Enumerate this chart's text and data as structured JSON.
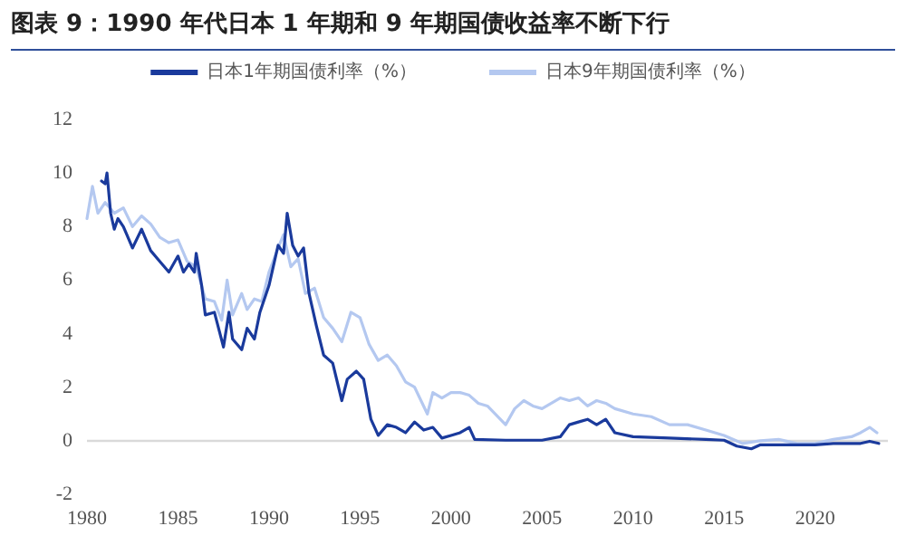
{
  "chart_data": {
    "type": "line",
    "title": "图表 9：1990 年代日本 1 年期和 9 年期国债收益率不断下行",
    "xlim": [
      1980,
      2024
    ],
    "xticks": [
      1980,
      1985,
      1990,
      1995,
      2000,
      2005,
      2010,
      2015,
      2020
    ],
    "ylim": [
      -2,
      12
    ],
    "yticks": [
      -2,
      0,
      2,
      4,
      6,
      8,
      10,
      12
    ],
    "grid": false,
    "legend": "top",
    "marker": "none",
    "line_style": "solid",
    "ref_lines": [
      {
        "axis": "y",
        "value": 0,
        "color": "#d9d9d9"
      }
    ],
    "series": [
      {
        "name": "日本1年期国债利率（%）",
        "color": "#1a3a9c",
        "x": [
          1980.8,
          1981.0,
          1981.1,
          1981.3,
          1981.5,
          1981.7,
          1982.0,
          1982.5,
          1983.0,
          1983.5,
          1984.0,
          1984.5,
          1985.0,
          1985.3,
          1985.6,
          1985.9,
          1986.0,
          1986.3,
          1986.5,
          1987.0,
          1987.5,
          1987.8,
          1988.0,
          1988.5,
          1988.8,
          1989.2,
          1989.5,
          1990.0,
          1990.5,
          1990.8,
          1991.0,
          1991.3,
          1991.6,
          1991.9,
          1992.2,
          1992.6,
          1993.0,
          1993.5,
          1994.0,
          1994.3,
          1994.8,
          1995.2,
          1995.6,
          1996.0,
          1996.5,
          1997.0,
          1997.5,
          1998.0,
          1998.5,
          1999.0,
          1999.5,
          2000.0,
          2000.5,
          2001.0,
          2001.3,
          2003.0,
          2005.0,
          2006.0,
          2006.5,
          2007.0,
          2007.5,
          2008.0,
          2008.5,
          2009.0,
          2010.0,
          2012.0,
          2014.0,
          2015.0,
          2015.7,
          2016.5,
          2017.0,
          2019.0,
          2020.0,
          2021.0,
          2022.5,
          2023.0,
          2023.5
        ],
        "values": [
          9.7,
          9.6,
          10.0,
          8.5,
          7.9,
          8.3,
          8.0,
          7.2,
          7.9,
          7.1,
          6.7,
          6.3,
          6.9,
          6.3,
          6.6,
          6.3,
          7.0,
          5.8,
          4.7,
          4.8,
          3.5,
          4.8,
          3.8,
          3.4,
          4.2,
          3.8,
          4.8,
          5.8,
          7.3,
          7.0,
          8.5,
          7.3,
          6.9,
          7.2,
          5.5,
          4.3,
          3.2,
          2.9,
          1.5,
          2.3,
          2.6,
          2.3,
          0.8,
          0.2,
          0.6,
          0.5,
          0.3,
          0.7,
          0.4,
          0.5,
          0.1,
          0.2,
          0.3,
          0.5,
          0.05,
          0.02,
          0.02,
          0.15,
          0.6,
          0.7,
          0.8,
          0.6,
          0.8,
          0.3,
          0.15,
          0.1,
          0.05,
          0.02,
          -0.2,
          -0.3,
          -0.15,
          -0.15,
          -0.15,
          -0.1,
          -0.1,
          -0.02,
          -0.1
        ]
      },
      {
        "name": "日本9年期国债利率（%）",
        "color": "#b4c8f0",
        "x": [
          1980.0,
          1980.3,
          1980.6,
          1981.0,
          1981.5,
          1982.0,
          1982.5,
          1983.0,
          1983.5,
          1984.0,
          1984.5,
          1985.0,
          1985.5,
          1986.0,
          1986.5,
          1987.0,
          1987.4,
          1987.7,
          1988.0,
          1988.5,
          1988.8,
          1989.2,
          1989.6,
          1990.0,
          1990.5,
          1990.8,
          1991.2,
          1991.6,
          1992.0,
          1992.5,
          1993.0,
          1993.5,
          1994.0,
          1994.5,
          1995.0,
          1995.5,
          1996.0,
          1996.5,
          1997.0,
          1997.5,
          1998.0,
          1998.7,
          1999.0,
          1999.5,
          2000.0,
          2000.5,
          2001.0,
          2001.5,
          2002.0,
          2003.0,
          2003.5,
          2004.0,
          2004.5,
          2005.0,
          2006.0,
          2006.5,
          2007.0,
          2007.5,
          2008.0,
          2008.5,
          2009.0,
          2010.0,
          2011.0,
          2012.0,
          2013.0,
          2014.0,
          2015.0,
          2016.0,
          2017.0,
          2018.0,
          2019.0,
          2020.0,
          2021.0,
          2022.0,
          2022.5,
          2023.0,
          2023.4
        ],
        "values": [
          8.3,
          9.5,
          8.5,
          8.9,
          8.5,
          8.7,
          8.0,
          8.4,
          8.1,
          7.6,
          7.4,
          7.5,
          6.7,
          6.5,
          5.3,
          5.2,
          4.5,
          6.0,
          4.7,
          5.5,
          4.9,
          5.3,
          5.2,
          6.3,
          7.2,
          7.7,
          6.5,
          6.8,
          5.5,
          5.7,
          4.6,
          4.2,
          3.7,
          4.8,
          4.6,
          3.6,
          3.0,
          3.2,
          2.8,
          2.2,
          2.0,
          1.0,
          1.8,
          1.6,
          1.8,
          1.8,
          1.7,
          1.4,
          1.3,
          0.6,
          1.2,
          1.5,
          1.3,
          1.2,
          1.6,
          1.5,
          1.6,
          1.3,
          1.5,
          1.4,
          1.2,
          1.0,
          0.9,
          0.6,
          0.6,
          0.4,
          0.2,
          -0.1,
          0.0,
          0.05,
          -0.1,
          -0.1,
          0.05,
          0.15,
          0.3,
          0.5,
          0.3
        ]
      }
    ]
  }
}
